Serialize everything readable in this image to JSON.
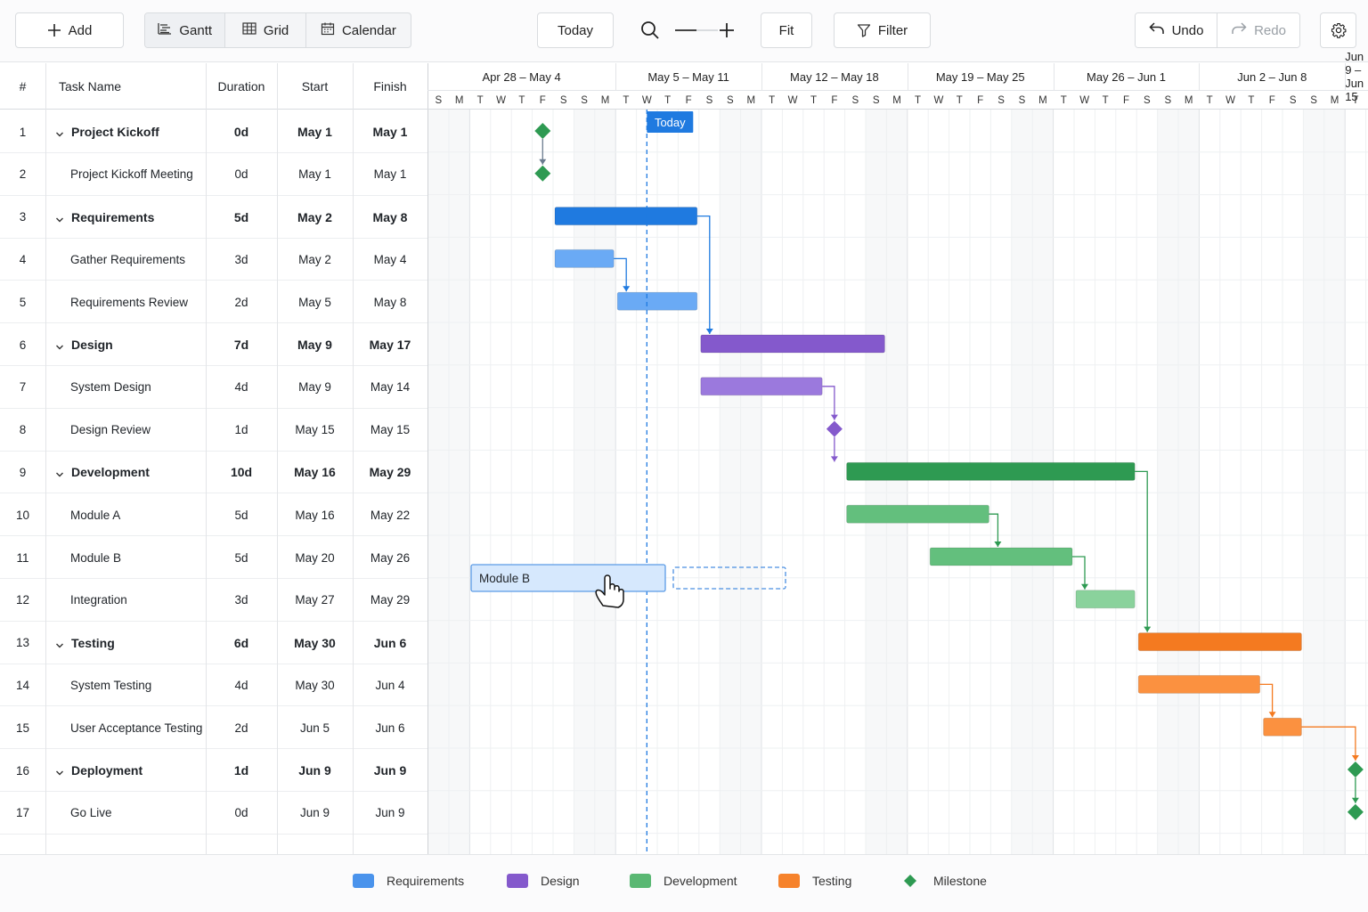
{
  "toolbar": {
    "add_label": "Add",
    "views": [
      {
        "label": "Gantt",
        "icon": "gantt-icon",
        "active": true
      },
      {
        "label": "Grid",
        "icon": "grid-icon",
        "active": false
      },
      {
        "label": "Calendar",
        "icon": "calendar-icon",
        "active": false
      }
    ],
    "today_label": "Today",
    "fit_label": "Fit",
    "filter_label": "Filter",
    "undo_label": "Undo",
    "redo_label": "Redo"
  },
  "table": {
    "headers": {
      "num": "#",
      "name": "Task Name",
      "duration": "Duration",
      "start": "Start",
      "finish": "Finish"
    },
    "rows": [
      {
        "num": "1",
        "name": "Project Kickoff",
        "duration": "0d",
        "start": "May 1",
        "finish": "May 1",
        "summary": true
      },
      {
        "num": "2",
        "name": "Project Kickoff Meeting",
        "duration": "0d",
        "start": "May 1",
        "finish": "May 1",
        "summary": false
      },
      {
        "num": "3",
        "name": "Requirements",
        "duration": "5d",
        "start": "May 2",
        "finish": "May 8",
        "summary": true
      },
      {
        "num": "4",
        "name": "Gather Requirements",
        "duration": "3d",
        "start": "May 2",
        "finish": "May 4",
        "summary": false
      },
      {
        "num": "5",
        "name": "Requirements Review",
        "duration": "2d",
        "start": "May 5",
        "finish": "May 8",
        "summary": false
      },
      {
        "num": "6",
        "name": "Design",
        "duration": "7d",
        "start": "May 9",
        "finish": "May 17",
        "summary": true
      },
      {
        "num": "7",
        "name": "System Design",
        "duration": "4d",
        "start": "May 9",
        "finish": "May 14",
        "summary": false
      },
      {
        "num": "8",
        "name": "Design Review",
        "duration": "1d",
        "start": "May 15",
        "finish": "May 15",
        "summary": false
      },
      {
        "num": "9",
        "name": "Development",
        "duration": "10d",
        "start": "May 16",
        "finish": "May 29",
        "summary": true
      },
      {
        "num": "10",
        "name": "Module A",
        "duration": "5d",
        "start": "May 16",
        "finish": "May 22",
        "summary": false
      },
      {
        "num": "11",
        "name": "Module B",
        "duration": "5d",
        "start": "May 20",
        "finish": "May 26",
        "summary": false
      },
      {
        "num": "12",
        "name": "Integration",
        "duration": "3d",
        "start": "May 27",
        "finish": "May 29",
        "summary": false
      },
      {
        "num": "13",
        "name": "Testing",
        "duration": "6d",
        "start": "May 30",
        "finish": "Jun 6",
        "summary": true
      },
      {
        "num": "14",
        "name": "System Testing",
        "duration": "4d",
        "start": "May 30",
        "finish": "Jun 4",
        "summary": false
      },
      {
        "num": "15",
        "name": "User Acceptance Testing",
        "duration": "2d",
        "start": "Jun 5",
        "finish": "Jun 6",
        "summary": false
      },
      {
        "num": "16",
        "name": "Deployment",
        "duration": "1d",
        "start": "Jun 9",
        "finish": "Jun 9",
        "summary": true
      },
      {
        "num": "17",
        "name": "Go Live",
        "duration": "0d",
        "start": "Jun 9",
        "finish": "Jun 9",
        "summary": false
      }
    ]
  },
  "timeline": {
    "weeks": [
      "Apr 28 – May 4",
      "May 5 – May 11",
      "May 12 – May 18",
      "May 19 – May 25",
      "May 26 – Jun 1",
      "Jun 2 – Jun 8",
      "Jun 9 – Jun 15"
    ],
    "day_letters": [
      "S",
      "M",
      "T",
      "W",
      "T",
      "F",
      "S"
    ],
    "today_label": "Today",
    "drag_label": "Module B"
  },
  "colors": {
    "requirements": "#1f7ae0",
    "requirements_light": "#6aaaf5",
    "design": "#8459cc",
    "design_light": "#9b79dd",
    "development": "#2e9a52",
    "development_light": "#63bf7d",
    "development_lighter": "#8ad29c",
    "testing": "#f47a20",
    "testing_light": "#fb9140",
    "milestone": "#2e9a52",
    "today": "#1f7ae0"
  },
  "legend": [
    {
      "label": "Requirements",
      "color": "#4a93ec",
      "shape": "box"
    },
    {
      "label": "Design",
      "color": "#8459cc",
      "shape": "box"
    },
    {
      "label": "Development",
      "color": "#5ab873",
      "shape": "box"
    },
    {
      "label": "Testing",
      "color": "#f6822b",
      "shape": "box"
    },
    {
      "label": "Milestone",
      "color": "#2e9a52",
      "shape": "diamond"
    }
  ]
}
